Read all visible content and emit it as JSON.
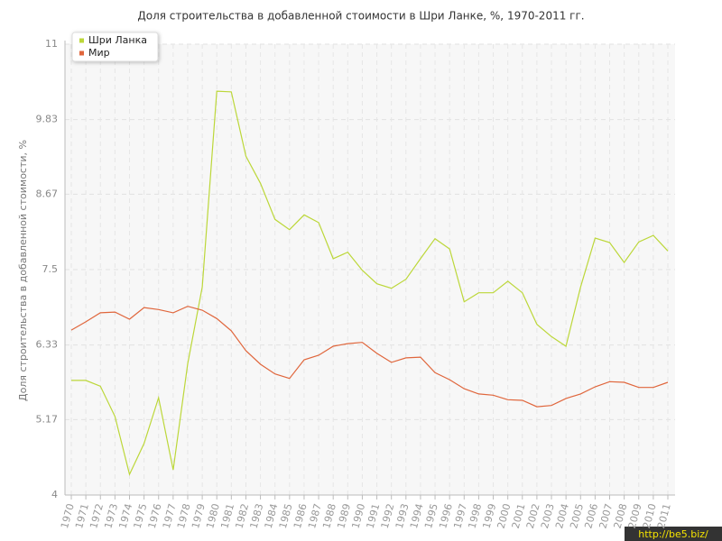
{
  "chart_data": {
    "type": "line",
    "title": "Доля строительства в добавленной стоимости в Шри Ланке, %, 1970-2011 гг.",
    "y_label": "Доля строительства в добавленной стоимости, %",
    "categories": [
      "1970",
      "1971",
      "1972",
      "1973",
      "1974",
      "1975",
      "1976",
      "1977",
      "1978",
      "1979",
      "1980",
      "1981",
      "1982",
      "1983",
      "1984",
      "1985",
      "1986",
      "1987",
      "1988",
      "1989",
      "1990",
      "1991",
      "1992",
      "1993",
      "1994",
      "1995",
      "1996",
      "1997",
      "1998",
      "1999",
      "2000",
      "2001",
      "2002",
      "2003",
      "2004",
      "2005",
      "2006",
      "2007",
      "2008",
      "2009",
      "2010",
      "2011"
    ],
    "series": [
      {
        "name": "Шри Ланка",
        "color": "#bcd739",
        "values": [
          5.78,
          5.78,
          5.69,
          5.22,
          4.32,
          4.8,
          5.51,
          4.39,
          6.04,
          7.23,
          10.27,
          10.26,
          9.26,
          8.84,
          8.28,
          8.12,
          8.35,
          8.23,
          7.67,
          7.77,
          7.49,
          7.28,
          7.21,
          7.35,
          7.67,
          7.98,
          7.82,
          7.0,
          7.14,
          7.14,
          7.32,
          7.14,
          6.65,
          6.46,
          6.31,
          7.23,
          7.99,
          7.92,
          7.61,
          7.93,
          8.03,
          7.79
        ]
      },
      {
        "name": "Мир",
        "color": "#e0663c",
        "values": [
          6.56,
          6.69,
          6.83,
          6.84,
          6.73,
          6.91,
          6.88,
          6.83,
          6.93,
          6.87,
          6.74,
          6.55,
          6.24,
          6.03,
          5.88,
          5.81,
          6.1,
          6.17,
          6.31,
          6.35,
          6.37,
          6.2,
          6.06,
          6.13,
          6.14,
          5.9,
          5.79,
          5.65,
          5.57,
          5.55,
          5.48,
          5.47,
          5.37,
          5.39,
          5.5,
          5.57,
          5.68,
          5.76,
          5.75,
          5.67,
          5.67,
          5.75
        ]
      }
    ],
    "ylim": [
      4,
      11
    ],
    "yticks": [
      4,
      5.17,
      6.33,
      7.5,
      8.67,
      9.83,
      11
    ],
    "grid": true,
    "legend": "top-left",
    "watermark": "http://be5.biz/"
  }
}
